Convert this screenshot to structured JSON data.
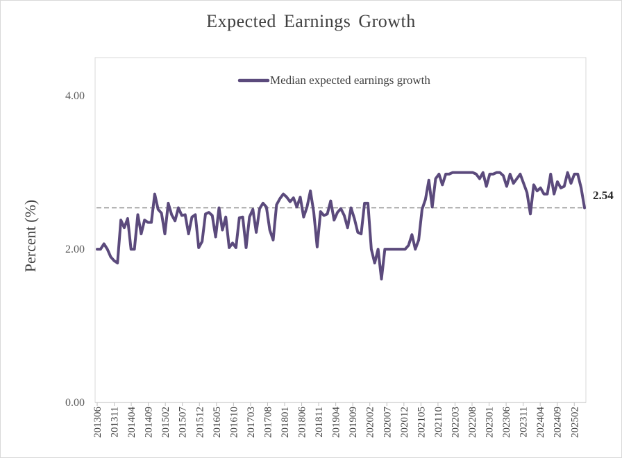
{
  "chart_data": {
    "type": "line",
    "title": "Expected Earnings Growth",
    "ylabel": "Percent (%)",
    "xlabel": "",
    "ylim": [
      0,
      4.5
    ],
    "yticks": [
      {
        "value": 0,
        "label": "0.00"
      },
      {
        "value": 2,
        "label": "2.00"
      },
      {
        "value": 4,
        "label": "4.00"
      }
    ],
    "x_tick_labels": [
      "201306",
      "201311",
      "201404",
      "201409",
      "201502",
      "201507",
      "201512",
      "201605",
      "201610",
      "201703",
      "201708",
      "201801",
      "201806",
      "201811",
      "201904",
      "201909",
      "202002",
      "202007",
      "202012",
      "202105",
      "202110",
      "202203",
      "202208",
      "202301",
      "202306",
      "202311",
      "202404",
      "202409",
      "202502"
    ],
    "x_start": "201306",
    "x_end": "202505",
    "legend": {
      "position": "top-center"
    },
    "grid": false,
    "series": [
      {
        "name": "Median expected earnings growth",
        "color": "#5b4a7c",
        "values": [
          2.0,
          2.0,
          2.07,
          2.0,
          1.9,
          1.85,
          1.82,
          2.38,
          2.28,
          2.4,
          2.0,
          2.0,
          2.45,
          2.2,
          2.38,
          2.35,
          2.35,
          2.72,
          2.52,
          2.47,
          2.2,
          2.6,
          2.45,
          2.37,
          2.54,
          2.44,
          2.45,
          2.2,
          2.42,
          2.45,
          2.02,
          2.1,
          2.46,
          2.48,
          2.44,
          2.16,
          2.54,
          2.25,
          2.42,
          2.02,
          2.08,
          2.02,
          2.41,
          2.42,
          2.02,
          2.42,
          2.52,
          2.22,
          2.53,
          2.6,
          2.55,
          2.25,
          2.12,
          2.58,
          2.66,
          2.72,
          2.68,
          2.62,
          2.67,
          2.55,
          2.68,
          2.42,
          2.55,
          2.76,
          2.48,
          2.03,
          2.49,
          2.44,
          2.46,
          2.63,
          2.38,
          2.48,
          2.53,
          2.44,
          2.28,
          2.54,
          2.4,
          2.22,
          2.2,
          2.6,
          2.6,
          2.0,
          1.82,
          2.0,
          1.61,
          2.0,
          2.0,
          2.0,
          2.0,
          2.0,
          2.0,
          2.0,
          2.05,
          2.19,
          2.0,
          2.12,
          2.52,
          2.65,
          2.9,
          2.55,
          2.92,
          2.98,
          2.84,
          2.98,
          2.98,
          3.0,
          3.0,
          3.0,
          3.0,
          3.0,
          3.0,
          3.0,
          2.98,
          2.92,
          3.0,
          2.82,
          2.98,
          2.98,
          3.0,
          3.0,
          2.96,
          2.82,
          2.98,
          2.86,
          2.92,
          2.98,
          2.86,
          2.74,
          2.46,
          2.84,
          2.76,
          2.8,
          2.72,
          2.72,
          2.98,
          2.72,
          2.88,
          2.8,
          2.82,
          3.0,
          2.86,
          2.98,
          2.98,
          2.8,
          2.54
        ]
      }
    ],
    "reference_line": {
      "value": 2.54,
      "label": "2.54",
      "color": "#8c8c8c",
      "style": "dashed"
    }
  }
}
